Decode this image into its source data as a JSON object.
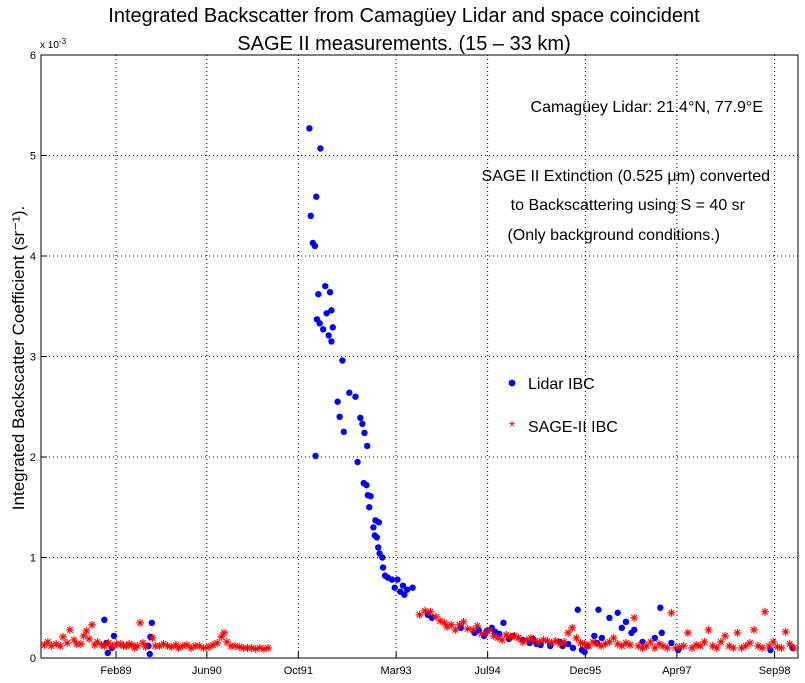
{
  "chart_data": {
    "type": "scatter",
    "title_line1": "Integrated Backscatter from Camagüey Lidar and space coincident",
    "title_line2": "SAGE II measurements. (15 – 33 km)",
    "ylabel": "Integrated Backscatter Coefficient (sr⁻¹).",
    "xlabel": "",
    "y_exponent_label": "x 10",
    "y_exponent_power": "-3",
    "xlim": [
      1988.0,
      1999.0
    ],
    "ylim": [
      0,
      6
    ],
    "grid": true,
    "legend_placement": "center-right",
    "x_ticks": [
      {
        "x": 1989.09,
        "label": "Feb89"
      },
      {
        "x": 1990.41,
        "label": "Jun90"
      },
      {
        "x": 1991.74,
        "label": "Oct91"
      },
      {
        "x": 1993.16,
        "label": "Mar93"
      },
      {
        "x": 1994.49,
        "label": "Jul94"
      },
      {
        "x": 1995.91,
        "label": "Dec95"
      },
      {
        "x": 1997.24,
        "label": "Apr97"
      },
      {
        "x": 1998.66,
        "label": "Sep98"
      }
    ],
    "y_ticks": [
      {
        "y": 0,
        "label": "0"
      },
      {
        "y": 1,
        "label": "1"
      },
      {
        "y": 2,
        "label": "2"
      },
      {
        "y": 3,
        "label": "3"
      },
      {
        "y": 4,
        "label": "4"
      },
      {
        "y": 5,
        "label": "5"
      },
      {
        "y": 6,
        "label": "6"
      }
    ],
    "annotations": {
      "site": "Camagüey Lidar: 21.4°N, 77.9°E",
      "line1": "SAGE II Extinction (0.525 μm) converted",
      "line2": "to Backscattering  using S = 40 sr",
      "line3": "(Only background conditions.)"
    },
    "series": [
      {
        "name": "Lidar IBC",
        "color": "#0000ff",
        "marker": "dot",
        "points": [
          [
            1988.92,
            0.38
          ],
          [
            1988.95,
            0.15
          ],
          [
            1988.97,
            0.05
          ],
          [
            1989.03,
            0.1
          ],
          [
            1989.06,
            0.22
          ],
          [
            1989.61,
            0.35
          ],
          [
            1989.59,
            0.21
          ],
          [
            1989.56,
            0.12
          ],
          [
            1989.58,
            0.04
          ],
          [
            1991.9,
            5.27
          ],
          [
            1991.92,
            4.4
          ],
          [
            1991.95,
            4.13
          ],
          [
            1991.98,
            4.1
          ],
          [
            1992.0,
            4.59
          ],
          [
            1992.03,
            3.62
          ],
          [
            1992.01,
            3.37
          ],
          [
            1992.05,
            3.33
          ],
          [
            1992.06,
            5.07
          ],
          [
            1992.1,
            3.27
          ],
          [
            1992.13,
            3.7
          ],
          [
            1992.15,
            3.43
          ],
          [
            1992.18,
            3.21
          ],
          [
            1992.2,
            3.64
          ],
          [
            1992.22,
            3.46
          ],
          [
            1992.24,
            3.29
          ],
          [
            1992.22,
            3.15
          ],
          [
            1991.99,
            2.01
          ],
          [
            1992.31,
            2.55
          ],
          [
            1992.34,
            2.4
          ],
          [
            1992.38,
            2.96
          ],
          [
            1992.4,
            2.25
          ],
          [
            1992.48,
            2.64
          ],
          [
            1992.57,
            2.6
          ],
          [
            1992.6,
            1.95
          ],
          [
            1992.64,
            2.39
          ],
          [
            1992.67,
            2.33
          ],
          [
            1992.7,
            2.24
          ],
          [
            1992.74,
            2.11
          ],
          [
            1992.69,
            1.74
          ],
          [
            1992.73,
            1.72
          ],
          [
            1992.75,
            1.62
          ],
          [
            1992.79,
            1.61
          ],
          [
            1992.77,
            1.5
          ],
          [
            1992.83,
            1.3
          ],
          [
            1992.86,
            1.37
          ],
          [
            1992.85,
            1.22
          ],
          [
            1992.88,
            1.2
          ],
          [
            1992.91,
            1.35
          ],
          [
            1992.9,
            1.1
          ],
          [
            1992.92,
            1.04
          ],
          [
            1992.96,
            1.0
          ],
          [
            1992.97,
            0.9
          ],
          [
            1993.0,
            0.82
          ],
          [
            1993.04,
            0.8
          ],
          [
            1993.1,
            0.78
          ],
          [
            1993.14,
            0.7
          ],
          [
            1993.18,
            0.78
          ],
          [
            1993.22,
            0.66
          ],
          [
            1993.26,
            0.72
          ],
          [
            1993.28,
            0.63
          ],
          [
            1993.32,
            0.68
          ],
          [
            1993.4,
            0.7
          ],
          [
            1993.62,
            0.43
          ],
          [
            1993.68,
            0.4
          ],
          [
            1994.1,
            0.3
          ],
          [
            1994.3,
            0.25
          ],
          [
            1994.36,
            0.28
          ],
          [
            1994.44,
            0.22
          ],
          [
            1994.48,
            0.27
          ],
          [
            1994.55,
            0.3
          ],
          [
            1994.6,
            0.26
          ],
          [
            1994.66,
            0.24
          ],
          [
            1994.72,
            0.35
          ],
          [
            1994.8,
            0.19
          ],
          [
            1994.86,
            0.22
          ],
          [
            1995.0,
            0.18
          ],
          [
            1995.1,
            0.15
          ],
          [
            1995.15,
            0.19
          ],
          [
            1995.2,
            0.14
          ],
          [
            1995.26,
            0.13
          ],
          [
            1995.4,
            0.12
          ],
          [
            1995.54,
            0.16
          ],
          [
            1995.58,
            0.12
          ],
          [
            1995.66,
            0.14
          ],
          [
            1995.73,
            0.1
          ],
          [
            1995.8,
            0.48
          ],
          [
            1995.86,
            0.08
          ],
          [
            1995.9,
            0.06
          ],
          [
            1995.94,
            0.12
          ],
          [
            1996.04,
            0.22
          ],
          [
            1996.08,
            0.15
          ],
          [
            1996.1,
            0.48
          ],
          [
            1996.15,
            0.2
          ],
          [
            1996.26,
            0.4
          ],
          [
            1996.38,
            0.45
          ],
          [
            1996.44,
            0.3
          ],
          [
            1996.5,
            0.36
          ],
          [
            1996.58,
            0.25
          ],
          [
            1996.62,
            0.28
          ],
          [
            1996.74,
            0.16
          ],
          [
            1996.92,
            0.2
          ],
          [
            1997.0,
            0.5
          ],
          [
            1997.02,
            0.25
          ],
          [
            1997.16,
            0.15
          ],
          [
            1997.26,
            0.08
          ],
          [
            1998.6,
            0.08
          ],
          [
            1998.92,
            0.1
          ]
        ]
      },
      {
        "name": "SAGE-II IBC",
        "color": "#ff0000",
        "marker": "star",
        "points": [
          [
            1988.05,
            0.13
          ],
          [
            1988.1,
            0.16
          ],
          [
            1988.15,
            0.12
          ],
          [
            1988.22,
            0.14
          ],
          [
            1988.28,
            0.12
          ],
          [
            1988.32,
            0.21
          ],
          [
            1988.38,
            0.15
          ],
          [
            1988.42,
            0.28
          ],
          [
            1988.48,
            0.18
          ],
          [
            1988.52,
            0.14
          ],
          [
            1988.58,
            0.14
          ],
          [
            1988.62,
            0.22
          ],
          [
            1988.66,
            0.27
          ],
          [
            1988.7,
            0.19
          ],
          [
            1988.74,
            0.33
          ],
          [
            1988.78,
            0.13
          ],
          [
            1988.82,
            0.16
          ],
          [
            1988.88,
            0.13
          ],
          [
            1988.92,
            0.12
          ],
          [
            1988.98,
            0.15
          ],
          [
            1989.04,
            0.12
          ],
          [
            1989.1,
            0.14
          ],
          [
            1989.16,
            0.14
          ],
          [
            1989.2,
            0.12
          ],
          [
            1989.24,
            0.12
          ],
          [
            1989.28,
            0.14
          ],
          [
            1989.32,
            0.13
          ],
          [
            1989.36,
            0.1
          ],
          [
            1989.4,
            0.12
          ],
          [
            1989.44,
            0.35
          ],
          [
            1989.48,
            0.15
          ],
          [
            1989.52,
            0.11
          ],
          [
            1989.62,
            0.2
          ],
          [
            1989.66,
            0.12
          ],
          [
            1989.72,
            0.12
          ],
          [
            1989.78,
            0.14
          ],
          [
            1989.84,
            0.12
          ],
          [
            1989.9,
            0.11
          ],
          [
            1989.96,
            0.13
          ],
          [
            1990.0,
            0.1
          ],
          [
            1990.06,
            0.12
          ],
          [
            1990.12,
            0.13
          ],
          [
            1990.18,
            0.1
          ],
          [
            1990.24,
            0.12
          ],
          [
            1990.3,
            0.12
          ],
          [
            1990.36,
            0.1
          ],
          [
            1990.44,
            0.11
          ],
          [
            1990.5,
            0.13
          ],
          [
            1990.56,
            0.15
          ],
          [
            1990.62,
            0.21
          ],
          [
            1990.66,
            0.25
          ],
          [
            1990.7,
            0.16
          ],
          [
            1990.76,
            0.12
          ],
          [
            1990.82,
            0.12
          ],
          [
            1990.88,
            0.11
          ],
          [
            1990.94,
            0.1
          ],
          [
            1991.0,
            0.1
          ],
          [
            1991.06,
            0.1
          ],
          [
            1991.12,
            0.09
          ],
          [
            1991.18,
            0.1
          ],
          [
            1991.24,
            0.09
          ],
          [
            1991.3,
            0.1
          ],
          [
            1993.5,
            0.43
          ],
          [
            1993.58,
            0.47
          ],
          [
            1993.66,
            0.46
          ],
          [
            1993.74,
            0.41
          ],
          [
            1993.8,
            0.37
          ],
          [
            1993.86,
            0.35
          ],
          [
            1993.9,
            0.31
          ],
          [
            1993.96,
            0.33
          ],
          [
            1994.02,
            0.28
          ],
          [
            1994.08,
            0.33
          ],
          [
            1994.14,
            0.36
          ],
          [
            1994.2,
            0.29
          ],
          [
            1994.28,
            0.28
          ],
          [
            1994.34,
            0.32
          ],
          [
            1994.4,
            0.24
          ],
          [
            1994.46,
            0.25
          ],
          [
            1994.52,
            0.28
          ],
          [
            1994.58,
            0.22
          ],
          [
            1994.64,
            0.2
          ],
          [
            1994.7,
            0.18
          ],
          [
            1994.76,
            0.23
          ],
          [
            1994.82,
            0.21
          ],
          [
            1994.88,
            0.22
          ],
          [
            1994.94,
            0.2
          ],
          [
            1995.0,
            0.16
          ],
          [
            1995.06,
            0.18
          ],
          [
            1995.12,
            0.2
          ],
          [
            1995.18,
            0.17
          ],
          [
            1995.24,
            0.16
          ],
          [
            1995.3,
            0.18
          ],
          [
            1995.36,
            0.17
          ],
          [
            1995.42,
            0.15
          ],
          [
            1995.48,
            0.17
          ],
          [
            1995.54,
            0.14
          ],
          [
            1995.6,
            0.16
          ],
          [
            1995.66,
            0.25
          ],
          [
            1995.72,
            0.3
          ],
          [
            1995.78,
            0.2
          ],
          [
            1995.84,
            0.15
          ],
          [
            1995.9,
            0.14
          ],
          [
            1995.96,
            0.12
          ],
          [
            1996.02,
            0.16
          ],
          [
            1996.08,
            0.14
          ],
          [
            1996.14,
            0.12
          ],
          [
            1996.2,
            0.14
          ],
          [
            1996.26,
            0.16
          ],
          [
            1996.32,
            0.2
          ],
          [
            1996.38,
            0.14
          ],
          [
            1996.44,
            0.12
          ],
          [
            1996.5,
            0.15
          ],
          [
            1996.56,
            0.13
          ],
          [
            1996.62,
            0.4
          ],
          [
            1996.68,
            0.12
          ],
          [
            1996.74,
            0.1
          ],
          [
            1996.8,
            0.12
          ],
          [
            1996.86,
            0.16
          ],
          [
            1996.92,
            0.1
          ],
          [
            1996.98,
            0.14
          ],
          [
            1997.04,
            0.12
          ],
          [
            1997.1,
            0.1
          ],
          [
            1997.16,
            0.45
          ],
          [
            1997.22,
            0.1
          ],
          [
            1997.28,
            0.11
          ],
          [
            1997.34,
            0.12
          ],
          [
            1997.4,
            0.25
          ],
          [
            1997.46,
            0.1
          ],
          [
            1997.52,
            0.13
          ],
          [
            1997.58,
            0.12
          ],
          [
            1997.64,
            0.16
          ],
          [
            1997.7,
            0.28
          ],
          [
            1997.76,
            0.12
          ],
          [
            1997.82,
            0.1
          ],
          [
            1997.88,
            0.16
          ],
          [
            1997.94,
            0.22
          ],
          [
            1998.0,
            0.12
          ],
          [
            1998.06,
            0.1
          ],
          [
            1998.12,
            0.25
          ],
          [
            1998.18,
            0.1
          ],
          [
            1998.24,
            0.12
          ],
          [
            1998.3,
            0.15
          ],
          [
            1998.36,
            0.28
          ],
          [
            1998.42,
            0.12
          ],
          [
            1998.48,
            0.1
          ],
          [
            1998.52,
            0.46
          ],
          [
            1998.58,
            0.12
          ],
          [
            1998.64,
            0.16
          ],
          [
            1998.7,
            0.11
          ],
          [
            1998.76,
            0.1
          ],
          [
            1998.82,
            0.26
          ],
          [
            1998.88,
            0.14
          ],
          [
            1998.94,
            0.1
          ]
        ]
      }
    ]
  }
}
